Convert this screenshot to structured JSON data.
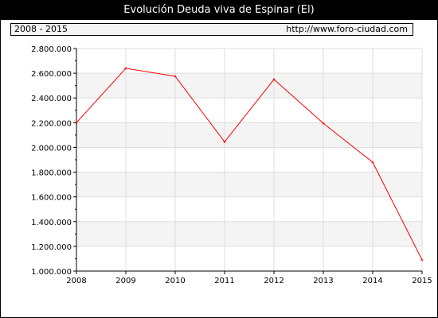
{
  "header": {
    "title": "Evolución Deuda viva de Espinar (El)",
    "range_label": "2008 - 2015",
    "source_url": "http://www.foro-ciudad.com"
  },
  "colors": {
    "line": "#ff0000",
    "band": "#f4f4f4",
    "grid": "#dddddd",
    "axis": "#000000"
  },
  "chart_data": {
    "type": "line",
    "title": "Evolución Deuda viva de Espinar (El)",
    "xlabel": "",
    "ylabel": "",
    "x": [
      "2008",
      "2009",
      "2010",
      "2011",
      "2012",
      "2013",
      "2014",
      "2015"
    ],
    "series": [
      {
        "values": [
          2200000,
          2640000,
          2575000,
          2045000,
          2550000,
          2195000,
          1880000,
          1090000
        ]
      }
    ],
    "ylim": [
      1000000,
      2800000
    ],
    "yticks": [
      1000000,
      1200000,
      1400000,
      1600000,
      1800000,
      2000000,
      2200000,
      2400000,
      2600000,
      2800000
    ],
    "ytick_labels": [
      "1.000.000",
      "1.200.000",
      "1.400.000",
      "1.600.000",
      "1.800.000",
      "2.000.000",
      "2.200.000",
      "2.400.000",
      "2.600.000",
      "2.800.000"
    ],
    "grid": true,
    "legend": "none"
  }
}
